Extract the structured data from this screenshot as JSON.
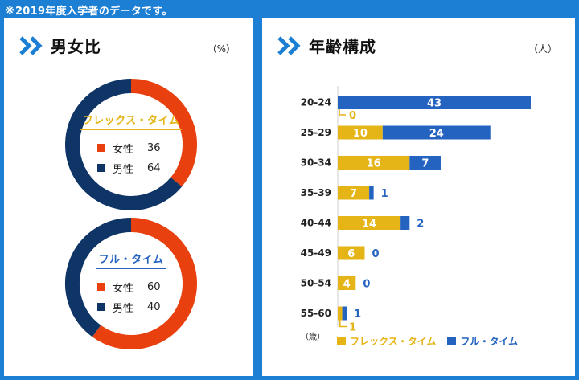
{
  "note": "※2019年度入学者のデータです。",
  "colors": {
    "female": "#e8400f",
    "male": "#0f3566",
    "flex": "#e5b417",
    "full": "#2563c0",
    "accent": "#1d7fd4"
  },
  "gender": {
    "title": "男女比",
    "unit": "（%）",
    "charts": [
      {
        "label": "フレックス・タイム",
        "label_color": "#e5b417",
        "items": [
          {
            "name": "女性",
            "value": 36
          },
          {
            "name": "男性",
            "value": 64
          }
        ]
      },
      {
        "label": "フル・タイム",
        "label_color": "#2563c0",
        "items": [
          {
            "name": "女性",
            "value": 60
          },
          {
            "name": "男性",
            "value": 40
          }
        ]
      }
    ]
  },
  "age": {
    "title": "年齢構成",
    "unit": "（人）",
    "axis_unit": "（歳）",
    "legend": [
      "フレックス・タイム",
      "フル・タイム"
    ]
  },
  "chart_data": [
    {
      "type": "pie",
      "title": "フレックス・タイム",
      "categories": [
        "女性",
        "男性"
      ],
      "values": [
        36,
        64
      ],
      "unit": "%"
    },
    {
      "type": "pie",
      "title": "フル・タイム",
      "categories": [
        "女性",
        "男性"
      ],
      "values": [
        60,
        40
      ],
      "unit": "%"
    },
    {
      "type": "bar",
      "orientation": "horizontal",
      "stacked": true,
      "title": "年齢構成",
      "categories": [
        "20-24",
        "25-29",
        "30-34",
        "35-39",
        "40-44",
        "45-49",
        "50-54",
        "55-60"
      ],
      "series": [
        {
          "name": "フレックス・タイム",
          "values": [
            0,
            10,
            16,
            7,
            14,
            6,
            4,
            1
          ]
        },
        {
          "name": "フル・タイム",
          "values": [
            43,
            24,
            7,
            1,
            2,
            0,
            0,
            1
          ]
        }
      ],
      "xlim": [
        0,
        43
      ]
    }
  ]
}
